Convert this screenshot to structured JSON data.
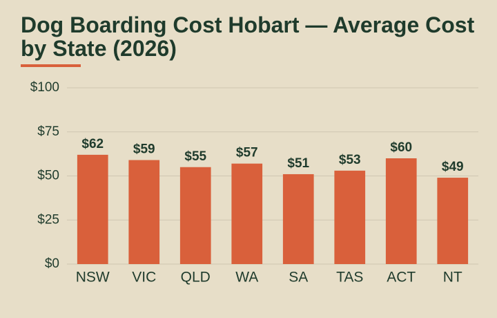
{
  "chart_data": {
    "type": "bar",
    "title": "Dog Boarding Cost Hobart — Average Cost by State (2026)",
    "categories": [
      "NSW",
      "VIC",
      "QLD",
      "WA",
      "SA",
      "TAS",
      "ACT",
      "NT"
    ],
    "values": [
      62,
      59,
      55,
      57,
      51,
      53,
      60,
      49
    ],
    "value_labels": [
      "$62",
      "$59",
      "$55",
      "$57",
      "$51",
      "$53",
      "$60",
      "$49"
    ],
    "color": "#d9603b",
    "ylim": [
      0,
      100
    ],
    "yticks": [
      {
        "value": 0,
        "label": "$0"
      },
      {
        "value": 25,
        "label": "$25"
      },
      {
        "value": 50,
        "label": "$50"
      },
      {
        "value": 75,
        "label": "$75"
      },
      {
        "value": 100,
        "label": "$100"
      }
    ],
    "grid": true
  }
}
